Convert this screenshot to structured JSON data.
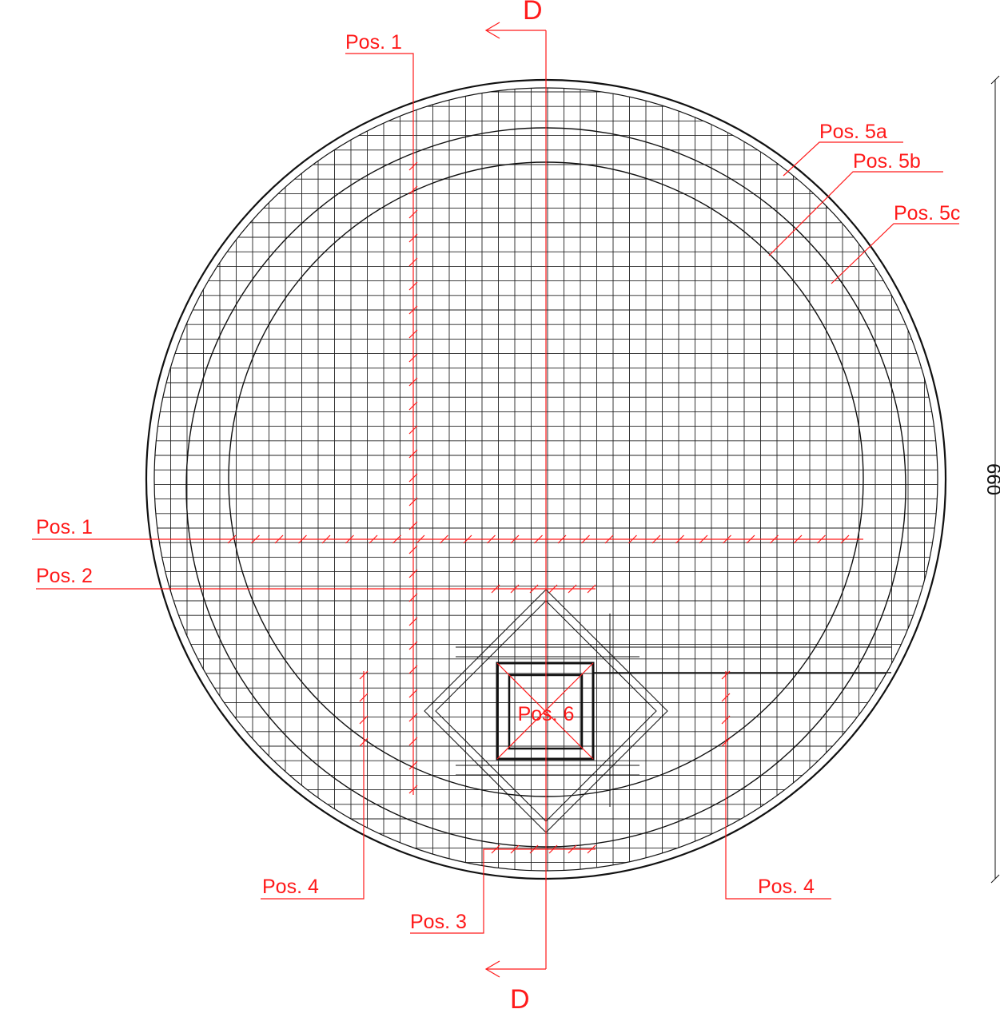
{
  "section_marks": [
    "D",
    "D"
  ],
  "labels": [
    "Pos. 1",
    "Pos. 1",
    "Pos. 2",
    "Pos. 3",
    "Pos. 4",
    "Pos. 4",
    "Pos. 5a",
    "Pos. 5b",
    "Pos. 5c",
    "Pos. 6"
  ],
  "dimension": "660"
}
